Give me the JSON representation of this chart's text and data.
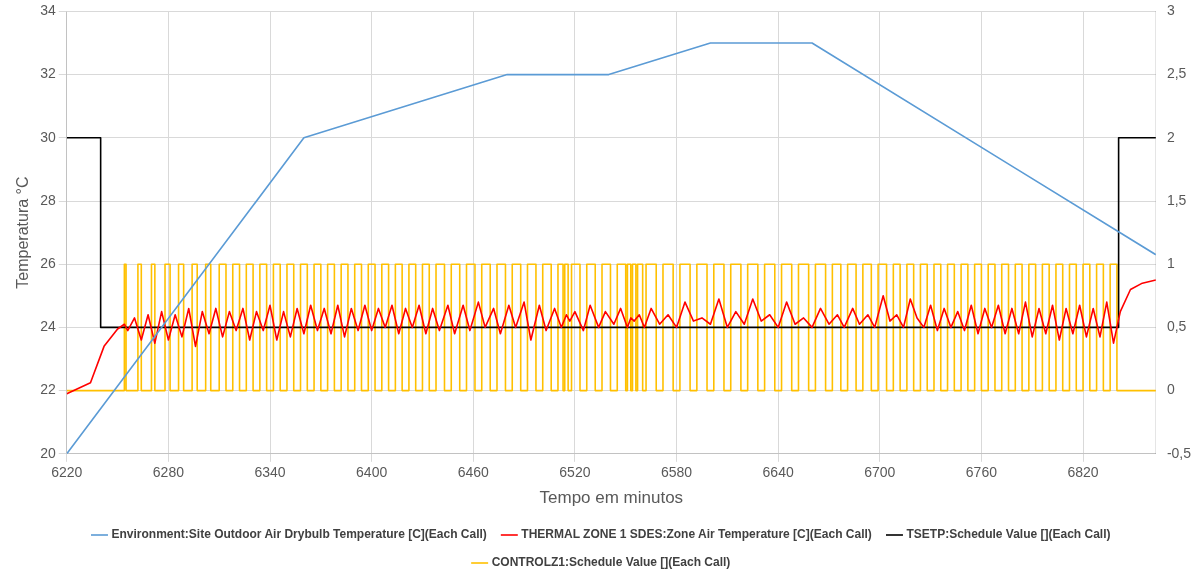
{
  "chart_data": {
    "type": "line",
    "xlabel": "Tempo em minutos",
    "ylabel": "Temperatura °C",
    "xlim": [
      6220,
      6863
    ],
    "xticks": [
      6220,
      6280,
      6340,
      6400,
      6460,
      6520,
      6580,
      6640,
      6700,
      6760,
      6820
    ],
    "ylim": [
      20,
      34
    ],
    "yticks": [
      20,
      22,
      24,
      26,
      28,
      30,
      32,
      34
    ],
    "y2lim": [
      -0.5,
      3
    ],
    "y2ticks": [
      {
        "value": -0.5,
        "label": "-0,5"
      },
      0,
      {
        "value": 0.5,
        "label": "0,5"
      },
      1,
      {
        "value": 1.5,
        "label": "1,5"
      },
      2,
      {
        "value": 2.5,
        "label": "2,5"
      },
      3
    ],
    "grid": true,
    "legend": "bottom",
    "marker": "none",
    "line_style": "solid",
    "series": [
      {
        "name": "Environment:Site Outdoor Air Drybulb Temperature [C](Each Call)",
        "color": "#5b9bd5",
        "type": "line",
        "x": [
          6220,
          6360,
          6480,
          6540,
          6600,
          6660,
          6863
        ],
        "values": [
          20,
          30,
          32,
          32,
          33,
          33,
          26.3
        ]
      },
      {
        "name": "THERMAL ZONE 1 SDES:Zone Air Temperature [C](Each Call)",
        "color": "#ff0000",
        "type": "line",
        "x": [
          6220,
          6234,
          6242,
          6250,
          6254,
          6256,
          6260,
          6264,
          6268,
          6272,
          6276,
          6280,
          6284,
          6288,
          6292,
          6296,
          6300,
          6304,
          6308,
          6312,
          6316,
          6320,
          6324,
          6328,
          6332,
          6336,
          6340,
          6344,
          6348,
          6352,
          6356,
          6360,
          6364,
          6368,
          6372,
          6376,
          6380,
          6384,
          6388,
          6392,
          6396,
          6400,
          6404,
          6408,
          6412,
          6416,
          6420,
          6424,
          6428,
          6432,
          6436,
          6440,
          6445,
          6449,
          6454,
          6458,
          6463,
          6467,
          6472,
          6476,
          6481,
          6485,
          6490,
          6494,
          6499,
          6503,
          6508,
          6512,
          6515,
          6517,
          6520,
          6525,
          6529,
          6534,
          6538,
          6543,
          6547,
          6551,
          6553,
          6555,
          6558,
          6561,
          6565,
          6570,
          6575,
          6580,
          6585,
          6590,
          6595,
          6600,
          6605,
          6610,
          6615,
          6620,
          6625,
          6630,
          6635,
          6640,
          6645,
          6650,
          6655,
          6660,
          6665,
          6670,
          6675,
          6679,
          6684,
          6688,
          6693,
          6697,
          6702,
          6706,
          6710,
          6714,
          6718,
          6722,
          6726,
          6730,
          6734,
          6738,
          6742,
          6746,
          6750,
          6754,
          6758,
          6762,
          6766,
          6770,
          6774,
          6778,
          6782,
          6786,
          6790,
          6794,
          6798,
          6802,
          6806,
          6810,
          6814,
          6818,
          6822,
          6826,
          6830,
          6834,
          6838,
          6842,
          6848,
          6855,
          6863
        ],
        "values": [
          21.9,
          22.25,
          23.4,
          23.95,
          24.1,
          23.9,
          24.3,
          23.6,
          24.4,
          23.5,
          24.5,
          23.6,
          24.4,
          23.7,
          24.6,
          23.4,
          24.5,
          23.8,
          24.6,
          23.7,
          24.5,
          23.9,
          24.6,
          23.6,
          24.5,
          23.9,
          24.7,
          23.6,
          24.5,
          23.7,
          24.6,
          23.8,
          24.7,
          23.9,
          24.6,
          23.8,
          24.7,
          23.7,
          24.6,
          23.9,
          24.7,
          23.9,
          24.6,
          24.0,
          24.7,
          23.8,
          24.6,
          24.0,
          24.7,
          23.8,
          24.6,
          23.9,
          24.7,
          23.8,
          24.7,
          23.9,
          24.8,
          24.0,
          24.6,
          23.8,
          24.7,
          24.0,
          24.8,
          23.6,
          24.7,
          23.9,
          24.6,
          24.0,
          24.4,
          24.2,
          24.5,
          23.9,
          24.7,
          24.0,
          24.5,
          24.1,
          24.6,
          24.0,
          24.3,
          24.2,
          24.4,
          24.0,
          24.6,
          24.1,
          24.4,
          24.0,
          24.8,
          24.2,
          24.3,
          24.1,
          24.9,
          24.0,
          24.5,
          24.1,
          24.9,
          24.2,
          24.4,
          24.0,
          24.8,
          24.1,
          24.3,
          24.0,
          24.6,
          24.1,
          24.4,
          24.0,
          24.6,
          24.1,
          24.4,
          24.0,
          25.0,
          24.2,
          24.4,
          24.0,
          24.9,
          24.3,
          24.0,
          24.7,
          23.9,
          24.6,
          24.0,
          24.5,
          23.9,
          24.7,
          23.8,
          24.6,
          24.0,
          24.7,
          23.8,
          24.6,
          23.8,
          24.8,
          23.7,
          24.6,
          23.8,
          24.7,
          23.6,
          24.6,
          23.8,
          24.7,
          23.7,
          24.6,
          23.7,
          24.8,
          23.5,
          24.5,
          25.2,
          25.4,
          25.5
        ]
      },
      {
        "name": "TSETP:Schedule Value [](Each Call)",
        "color": "#000000",
        "type": "step",
        "axis": "y2",
        "x": [
          6220,
          6240,
          6841,
          6863
        ],
        "values": [
          2,
          0.5,
          2,
          2
        ]
      },
      {
        "name": "CONTROLZ1:Schedule Value [](Each Call)",
        "color": "#ffc000",
        "type": "step",
        "axis": "y2",
        "x": [
          6220,
          6254,
          6255,
          6262,
          6264,
          6270,
          6272,
          6278,
          6281,
          6286,
          6289,
          6294,
          6297,
          6302,
          6305,
          6310,
          6314,
          6318,
          6322,
          6326,
          6330,
          6334,
          6338,
          6342,
          6346,
          6350,
          6354,
          6358,
          6362,
          6366,
          6370,
          6374,
          6378,
          6382,
          6386,
          6390,
          6394,
          6398,
          6402,
          6406,
          6410,
          6414,
          6418,
          6422,
          6426,
          6430,
          6434,
          6438,
          6443,
          6447,
          6452,
          6456,
          6461,
          6465,
          6470,
          6474,
          6479,
          6483,
          6488,
          6492,
          6497,
          6501,
          6506,
          6510,
          6513,
          6514,
          6516,
          6518,
          6523,
          6527,
          6532,
          6536,
          6541,
          6545,
          6550,
          6551,
          6553,
          6554,
          6556,
          6557,
          6560,
          6562,
          6568,
          6572,
          6578,
          6582,
          6588,
          6592,
          6598,
          6602,
          6608,
          6612,
          6618,
          6622,
          6628,
          6632,
          6638,
          6642,
          6648,
          6652,
          6658,
          6662,
          6668,
          6672,
          6677,
          6681,
          6686,
          6690,
          6695,
          6699,
          6704,
          6708,
          6712,
          6716,
          6720,
          6724,
          6728,
          6732,
          6736,
          6740,
          6744,
          6748,
          6752,
          6756,
          6760,
          6764,
          6768,
          6772,
          6776,
          6780,
          6784,
          6788,
          6792,
          6796,
          6800,
          6804,
          6808,
          6812,
          6816,
          6820,
          6824,
          6828,
          6832,
          6836,
          6840,
          6863
        ],
        "values": [
          0,
          1,
          0,
          1,
          0,
          1,
          0,
          1,
          0,
          1,
          0,
          1,
          0,
          1,
          0,
          1,
          0,
          1,
          0,
          1,
          0,
          1,
          0,
          1,
          0,
          1,
          0,
          1,
          0,
          1,
          0,
          1,
          0,
          1,
          0,
          1,
          0,
          1,
          0,
          1,
          0,
          1,
          0,
          1,
          0,
          1,
          0,
          1,
          0,
          1,
          0,
          1,
          0,
          1,
          0,
          1,
          0,
          1,
          0,
          1,
          0,
          1,
          0,
          1,
          0,
          1,
          0,
          1,
          0,
          1,
          0,
          1,
          0,
          1,
          0,
          1,
          0,
          1,
          0,
          1,
          0,
          1,
          0,
          1,
          0,
          1,
          0,
          1,
          0,
          1,
          0,
          1,
          0,
          1,
          0,
          1,
          0,
          1,
          0,
          1,
          0,
          1,
          0,
          1,
          0,
          1,
          0,
          1,
          0,
          1,
          0,
          1,
          0,
          1,
          0,
          1,
          0,
          1,
          0,
          1,
          0,
          1,
          0,
          1,
          0,
          1,
          0,
          1,
          0,
          1,
          0,
          1,
          0,
          1,
          0,
          1,
          0,
          1,
          0,
          1,
          0,
          1,
          0,
          1,
          0,
          0
        ]
      }
    ]
  }
}
